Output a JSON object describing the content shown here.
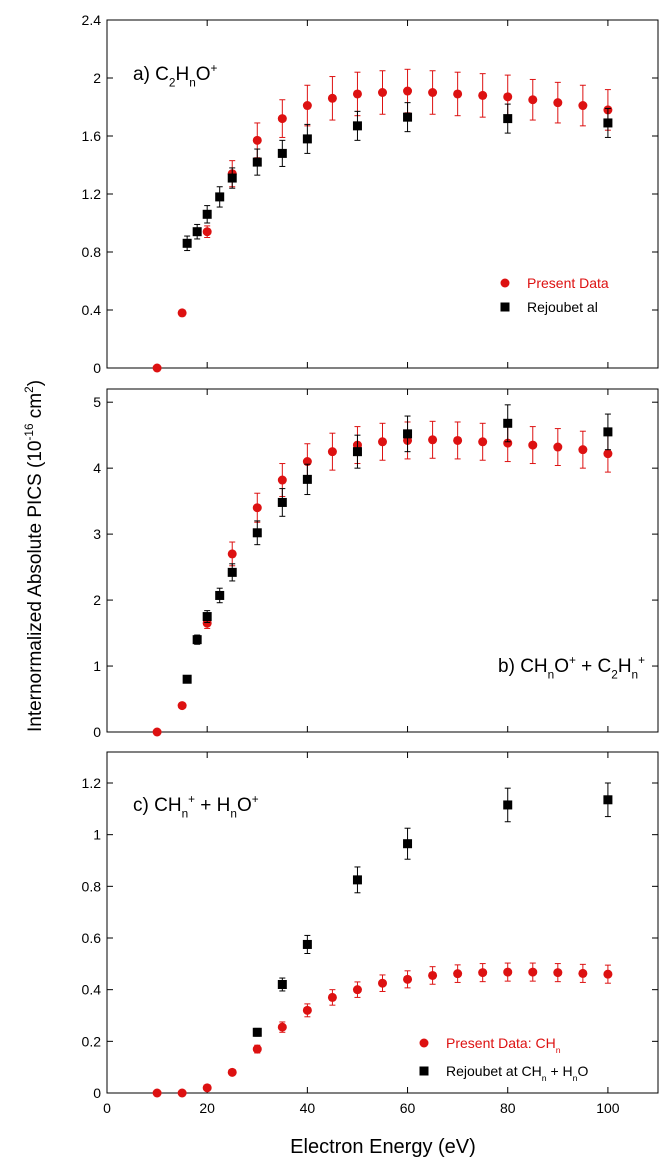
{
  "figure": {
    "ylabel": "Internormalized Absolute PICS (10",
    "ylabel_exp": "-16",
    "ylabel_tail": " cm",
    "ylabel_exp2": "2",
    "ylabel_close": ")",
    "xlabel": "Electron Energy (eV)"
  },
  "colors": {
    "present": "#dd1111",
    "rejoubet": "#000000",
    "axis": "#000000"
  },
  "chart_data": [
    {
      "type": "scatter",
      "panel": "a",
      "annotation": {
        "parts": [
          {
            "t": "a) C",
            "s": "n"
          },
          {
            "t": "2",
            "s": "sub"
          },
          {
            "t": "H",
            "s": "n"
          },
          {
            "t": "n",
            "s": "sub"
          },
          {
            "t": "O",
            "s": "n"
          },
          {
            "t": "+",
            "s": "sup"
          }
        ]
      },
      "xlim": [
        0,
        110
      ],
      "ylim": [
        0,
        2.4
      ],
      "xticks": [
        0,
        20,
        40,
        60,
        80,
        100
      ],
      "yticks": [
        0,
        0.4,
        0.8,
        1.2,
        1.6,
        2,
        2.4
      ],
      "ytick_labels": [
        "0",
        "0.4",
        "0.8",
        "1.2",
        "1.6",
        "2",
        "2.4"
      ],
      "legend": {
        "position": "lower-right",
        "entries": [
          {
            "series": "present",
            "parts": [
              {
                "t": "Present Data",
                "s": "n"
              }
            ]
          },
          {
            "series": "rejoubet",
            "parts": [
              {
                "t": "Rejoubet al",
                "s": "n"
              }
            ]
          }
        ]
      },
      "series": [
        {
          "key": "present",
          "name": "Present Data",
          "marker": "circle",
          "x": [
            10,
            15,
            20,
            25,
            30,
            35,
            40,
            45,
            50,
            55,
            60,
            65,
            70,
            75,
            80,
            85,
            90,
            95,
            100
          ],
          "y": [
            0,
            0.38,
            0.94,
            1.34,
            1.57,
            1.72,
            1.81,
            1.86,
            1.89,
            1.9,
            1.91,
            1.9,
            1.89,
            1.88,
            1.87,
            1.85,
            1.83,
            1.81,
            1.78
          ],
          "err": [
            0,
            0.02,
            0.04,
            0.09,
            0.12,
            0.13,
            0.14,
            0.15,
            0.15,
            0.15,
            0.15,
            0.15,
            0.15,
            0.15,
            0.15,
            0.14,
            0.14,
            0.14,
            0.14
          ]
        },
        {
          "key": "rejoubet",
          "name": "Rejoubet al",
          "marker": "square",
          "x": [
            16,
            18,
            20,
            22.5,
            25,
            30,
            35,
            40,
            50,
            60,
            80,
            100
          ],
          "y": [
            0.86,
            0.94,
            1.06,
            1.18,
            1.31,
            1.42,
            1.48,
            1.58,
            1.67,
            1.73,
            1.72,
            1.69
          ],
          "err": [
            0.05,
            0.05,
            0.06,
            0.07,
            0.07,
            0.09,
            0.09,
            0.1,
            0.1,
            0.1,
            0.1,
            0.1
          ]
        }
      ]
    },
    {
      "type": "scatter",
      "panel": "b",
      "annotation": {
        "parts": [
          {
            "t": "b) CH",
            "s": "n"
          },
          {
            "t": "n",
            "s": "sub"
          },
          {
            "t": "O",
            "s": "n"
          },
          {
            "t": "+",
            "s": "sup"
          },
          {
            "t": " + C",
            "s": "n"
          },
          {
            "t": "2",
            "s": "sub"
          },
          {
            "t": "H",
            "s": "n"
          },
          {
            "t": "n",
            "s": "sub"
          },
          {
            "t": "+",
            "s": "sup"
          }
        ]
      },
      "xlim": [
        0,
        110
      ],
      "ylim": [
        0,
        5.2
      ],
      "xticks": [
        0,
        20,
        40,
        60,
        80,
        100
      ],
      "yticks": [
        0,
        1,
        2,
        3,
        4,
        5
      ],
      "ytick_labels": [
        "0",
        "1",
        "2",
        "3",
        "4",
        "5"
      ],
      "series": [
        {
          "key": "present",
          "name": "Present Data",
          "marker": "circle",
          "x": [
            10,
            15,
            20,
            25,
            30,
            35,
            40,
            45,
            50,
            55,
            60,
            65,
            70,
            75,
            80,
            85,
            90,
            95,
            100
          ],
          "y": [
            0,
            0.4,
            1.65,
            2.7,
            3.4,
            3.82,
            4.1,
            4.25,
            4.35,
            4.4,
            4.42,
            4.43,
            4.42,
            4.4,
            4.38,
            4.35,
            4.32,
            4.28,
            4.22
          ],
          "err": [
            0,
            0.02,
            0.08,
            0.18,
            0.22,
            0.25,
            0.27,
            0.28,
            0.28,
            0.28,
            0.28,
            0.28,
            0.28,
            0.28,
            0.28,
            0.28,
            0.28,
            0.28,
            0.28
          ]
        },
        {
          "key": "rejoubet",
          "name": "Rejoubet al",
          "marker": "square",
          "x": [
            16,
            18,
            20,
            22.5,
            25,
            30,
            35,
            40,
            50,
            60,
            80,
            100
          ],
          "y": [
            0.8,
            1.4,
            1.75,
            2.07,
            2.42,
            3.02,
            3.48,
            3.83,
            4.25,
            4.52,
            4.68,
            4.55
          ],
          "err": [
            0.04,
            0.07,
            0.09,
            0.11,
            0.13,
            0.18,
            0.21,
            0.23,
            0.25,
            0.27,
            0.28,
            0.27
          ]
        }
      ]
    },
    {
      "type": "scatter",
      "panel": "c",
      "annotation": {
        "parts": [
          {
            "t": "c) CH",
            "s": "n"
          },
          {
            "t": "n",
            "s": "sub"
          },
          {
            "t": "+",
            "s": "sup"
          },
          {
            "t": " + H",
            "s": "n"
          },
          {
            "t": "n",
            "s": "sub"
          },
          {
            "t": "O",
            "s": "n"
          },
          {
            "t": "+",
            "s": "sup"
          }
        ]
      },
      "xlim": [
        0,
        110
      ],
      "ylim": [
        0,
        1.32
      ],
      "xticks": [
        0,
        20,
        40,
        60,
        80,
        100
      ],
      "xtick_labels": [
        "0",
        "20",
        "40",
        "60",
        "80",
        "100"
      ],
      "yticks": [
        0,
        0.2,
        0.4,
        0.6,
        0.8,
        1,
        1.2
      ],
      "ytick_labels": [
        "0",
        "0.2",
        "0.4",
        "0.6",
        "0.8",
        "1",
        "1.2"
      ],
      "legend": {
        "position": "lower-right",
        "entries": [
          {
            "series": "present",
            "parts": [
              {
                "t": "Present Data: CH",
                "s": "n"
              },
              {
                "t": "n",
                "s": "sub"
              }
            ]
          },
          {
            "series": "rejoubet",
            "parts": [
              {
                "t": "Rejoubet at CH",
                "s": "n"
              },
              {
                "t": "n",
                "s": "sub"
              },
              {
                "t": " + H",
                "s": "n"
              },
              {
                "t": "n",
                "s": "sub"
              },
              {
                "t": "O",
                "s": "n"
              }
            ]
          }
        ]
      },
      "series": [
        {
          "key": "present",
          "name": "Present Data: CH",
          "marker": "circle",
          "x": [
            10,
            15,
            20,
            25,
            30,
            35,
            40,
            45,
            50,
            55,
            60,
            65,
            70,
            75,
            80,
            85,
            90,
            95,
            100
          ],
          "y": [
            0,
            0,
            0.02,
            0.08,
            0.17,
            0.255,
            0.32,
            0.37,
            0.4,
            0.425,
            0.44,
            0.455,
            0.462,
            0.466,
            0.468,
            0.468,
            0.466,
            0.463,
            0.46
          ],
          "err": [
            0,
            0,
            0.005,
            0.01,
            0.015,
            0.02,
            0.025,
            0.03,
            0.03,
            0.032,
            0.033,
            0.034,
            0.034,
            0.035,
            0.035,
            0.035,
            0.035,
            0.035,
            0.035
          ]
        },
        {
          "key": "rejoubet",
          "name": "Rejoubet at CH + HO",
          "marker": "square",
          "x": [
            30,
            35,
            40,
            50,
            60,
            80,
            100
          ],
          "y": [
            0.235,
            0.42,
            0.575,
            0.825,
            0.965,
            1.115,
            1.135
          ],
          "err": [
            0.015,
            0.025,
            0.035,
            0.05,
            0.06,
            0.065,
            0.065
          ]
        }
      ]
    }
  ]
}
